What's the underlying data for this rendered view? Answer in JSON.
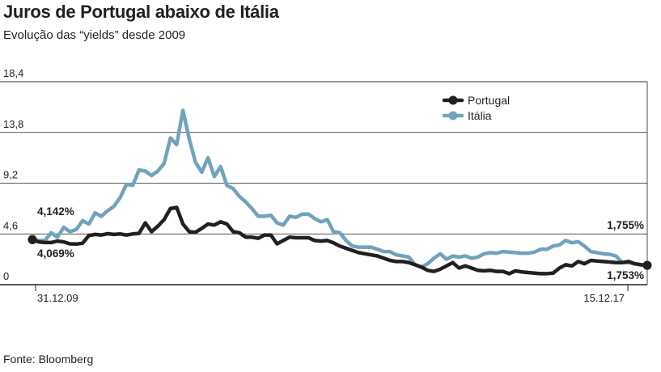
{
  "header": {
    "title": "Juros de Portugal abaixo de Itália",
    "subtitle": "Evolução das “yields” desde 2009"
  },
  "footer": {
    "source": "Fonte: Bloomberg"
  },
  "colors": {
    "portugal": "#231f20",
    "italia": "#6fa3bd",
    "gridline": "#231f20",
    "axis": "#231f20"
  },
  "chart_data": {
    "type": "line",
    "title": "Juros de Portugal abaixo de Itália",
    "subtitle": "Evolução das “yields” desde 2009",
    "xlabel": "",
    "ylabel": "",
    "x_tick_labels": [
      "31.12.09",
      "15.12.17"
    ],
    "y_ticks": [
      0,
      4.6,
      9.2,
      13.8,
      18.4
    ],
    "y_tick_labels": [
      "0",
      "4,6",
      "9,2",
      "13,8",
      "18,4"
    ],
    "ylim": [
      0,
      18.4
    ],
    "grid": "horizontal",
    "legend": "top-right",
    "series": [
      {
        "name": "Portugal",
        "color": "#231f20",
        "values": [
          4.07,
          3.88,
          3.82,
          3.82,
          3.95,
          3.88,
          3.7,
          3.68,
          3.75,
          4.45,
          4.55,
          4.5,
          4.62,
          4.55,
          4.6,
          4.5,
          4.6,
          4.65,
          5.6,
          4.8,
          5.3,
          5.9,
          6.9,
          7.0,
          5.5,
          4.8,
          4.75,
          5.1,
          5.5,
          5.4,
          5.7,
          5.5,
          4.8,
          4.7,
          4.3,
          4.3,
          4.2,
          4.5,
          4.5,
          3.7,
          4.0,
          4.3,
          4.25,
          4.25,
          4.25,
          4.0,
          3.95,
          4.0,
          3.8,
          3.5,
          3.3,
          3.1,
          2.9,
          2.8,
          2.7,
          2.6,
          2.4,
          2.2,
          2.1,
          2.1,
          2.0,
          1.8,
          1.6,
          1.3,
          1.2,
          1.4,
          1.7,
          2.0,
          1.5,
          1.7,
          1.5,
          1.3,
          1.25,
          1.3,
          1.2,
          1.2,
          1.0,
          1.25,
          1.15,
          1.1,
          1.05,
          1.0,
          1.0,
          1.05,
          1.5,
          1.8,
          1.7,
          2.1,
          1.9,
          2.2,
          2.15,
          2.1,
          2.05,
          2.0,
          2.0,
          2.1,
          1.9,
          1.8,
          1.753
        ]
      },
      {
        "name": "Itália",
        "color": "#6fa3bd",
        "values": [
          4.142,
          4.0,
          4.0,
          4.7,
          4.3,
          5.2,
          4.8,
          5.0,
          5.8,
          5.5,
          6.5,
          6.2,
          6.7,
          7.1,
          7.9,
          9.1,
          9.0,
          10.4,
          10.3,
          9.9,
          10.3,
          11.0,
          13.3,
          12.7,
          15.8,
          13.2,
          11.1,
          10.2,
          11.5,
          9.8,
          10.7,
          9.0,
          8.7,
          8.0,
          7.5,
          6.9,
          6.2,
          6.2,
          6.3,
          5.6,
          5.4,
          6.2,
          6.1,
          6.4,
          6.4,
          6.0,
          5.7,
          5.9,
          4.8,
          4.7,
          4.0,
          3.5,
          3.4,
          3.4,
          3.4,
          3.2,
          3.0,
          3.0,
          2.7,
          2.6,
          2.5,
          1.8,
          1.6,
          1.9,
          2.4,
          2.8,
          2.3,
          2.6,
          2.5,
          2.6,
          2.4,
          2.5,
          2.8,
          2.9,
          2.85,
          3.0,
          2.95,
          2.9,
          2.85,
          2.85,
          2.95,
          3.2,
          3.2,
          3.5,
          3.6,
          4.0,
          3.8,
          3.9,
          3.5,
          3.0,
          2.9,
          2.8,
          2.75,
          2.6,
          2.0,
          2.0,
          1.9,
          1.8,
          1.755
        ]
      }
    ],
    "annotations": [
      {
        "series": "Itália",
        "position": "start",
        "text": "4,142%"
      },
      {
        "series": "Portugal",
        "position": "start",
        "text": "4,069%"
      },
      {
        "series": "Itália",
        "position": "end",
        "text": "1,755%"
      },
      {
        "series": "Portugal",
        "position": "end",
        "text": "1,753%"
      }
    ]
  }
}
